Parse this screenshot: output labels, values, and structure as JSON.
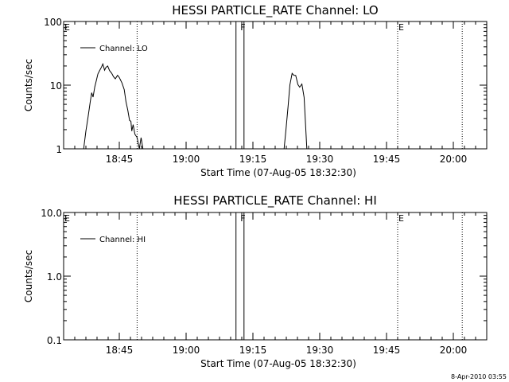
{
  "chart_data": [
    {
      "type": "line",
      "title": "HESSI PARTICLE_RATE Channel: LO",
      "xlabel": "Start Time (07-Aug-05 18:32:30)",
      "ylabel": "Counts/sec",
      "yscale": "log",
      "ylim": [
        1,
        100
      ],
      "y_ticks": [
        1,
        10,
        100
      ],
      "y_tick_labels": [
        "1",
        "10",
        "100"
      ],
      "x_range_min": [
        0,
        95
      ],
      "x_ticks_min": [
        12.5,
        27.5,
        42.5,
        57.5,
        72.5,
        87.5
      ],
      "x_tick_labels": [
        "18:45",
        "19:00",
        "19:15",
        "19:30",
        "19:45",
        "20:00"
      ],
      "grid": false,
      "legend_position": "top-left",
      "series": [
        {
          "name": "Channel: LO",
          "segments": [
            [
              [
                4.5,
                1
              ],
              [
                5.0,
                1.9
              ],
              [
                5.5,
                3.2
              ],
              [
                6.0,
                5.6
              ],
              [
                6.3,
                7.6
              ],
              [
                6.6,
                6.5
              ],
              [
                7.0,
                9.4
              ],
              [
                7.3,
                11.5
              ],
              [
                7.7,
                15.0
              ],
              [
                8.1,
                17.1
              ],
              [
                8.5,
                19.2
              ],
              [
                8.8,
                21.5
              ],
              [
                9.2,
                17.2
              ],
              [
                9.5,
                19.0
              ],
              [
                9.9,
                20.0
              ],
              [
                10.3,
                17.0
              ],
              [
                10.8,
                15.3
              ],
              [
                11.2,
                13.6
              ],
              [
                11.6,
                12.6
              ],
              [
                12.1,
                14.3
              ],
              [
                12.5,
                13.2
              ],
              [
                13.1,
                10.8
              ],
              [
                13.6,
                8.5
              ],
              [
                14.0,
                5.5
              ],
              [
                14.4,
                4.1
              ],
              [
                14.8,
                2.8
              ],
              [
                15.1,
                2.7
              ],
              [
                15.3,
                1.9
              ],
              [
                15.6,
                2.4
              ],
              [
                16.0,
                1.7
              ],
              [
                16.5,
                1.5
              ],
              [
                17.0,
                1.0
              ],
              [
                17.4,
                1.5
              ],
              [
                17.8,
                1.0
              ],
              [
                18.2,
                1.0
              ]
            ],
            [
              [
                49.5,
                1
              ],
              [
                49.9,
                1.9
              ],
              [
                50.4,
                4.6
              ],
              [
                50.8,
                10.1
              ],
              [
                51.3,
                15.3
              ],
              [
                51.7,
                14.3
              ],
              [
                52.1,
                14.2
              ],
              [
                52.6,
                10.2
              ],
              [
                53.0,
                9.3
              ],
              [
                53.5,
                10.4
              ],
              [
                54.0,
                6.4
              ],
              [
                54.6,
                1.0
              ]
            ]
          ]
        }
      ],
      "flags": [
        {
          "label": "E",
          "x_min": 0
        },
        {
          "label": "F",
          "x_min": 39.5
        },
        {
          "label": "E",
          "x_min": 75
        }
      ],
      "dotted_lines_min": [
        16.5,
        75,
        89.5
      ],
      "solid_lines_min": [
        38.7,
        40.5
      ]
    },
    {
      "type": "line",
      "title": "HESSI PARTICLE_RATE Channel: HI",
      "xlabel": "Start Time (07-Aug-05 18:32:30)",
      "ylabel": "Counts/sec",
      "yscale": "log",
      "ylim": [
        0.1,
        10
      ],
      "y_ticks": [
        0.1,
        1,
        10
      ],
      "y_tick_labels": [
        "0.1",
        "1.0",
        "10.0"
      ],
      "x_range_min": [
        0,
        95
      ],
      "x_ticks_min": [
        12.5,
        27.5,
        42.5,
        57.5,
        72.5,
        87.5
      ],
      "x_tick_labels": [
        "18:45",
        "19:00",
        "19:15",
        "19:30",
        "19:45",
        "20:00"
      ],
      "grid": false,
      "legend_position": "top-left",
      "series": [
        {
          "name": "Channel: HI",
          "segments": []
        }
      ],
      "flags": [
        {
          "label": "E",
          "x_min": 0
        },
        {
          "label": "F",
          "x_min": 39.5
        },
        {
          "label": "E",
          "x_min": 75
        }
      ],
      "dotted_lines_min": [
        16.5,
        75,
        89.5
      ],
      "solid_lines_min": [
        38.7,
        40.5
      ]
    }
  ],
  "footer": {
    "timestamp": "8-Apr-2010 03:55"
  }
}
